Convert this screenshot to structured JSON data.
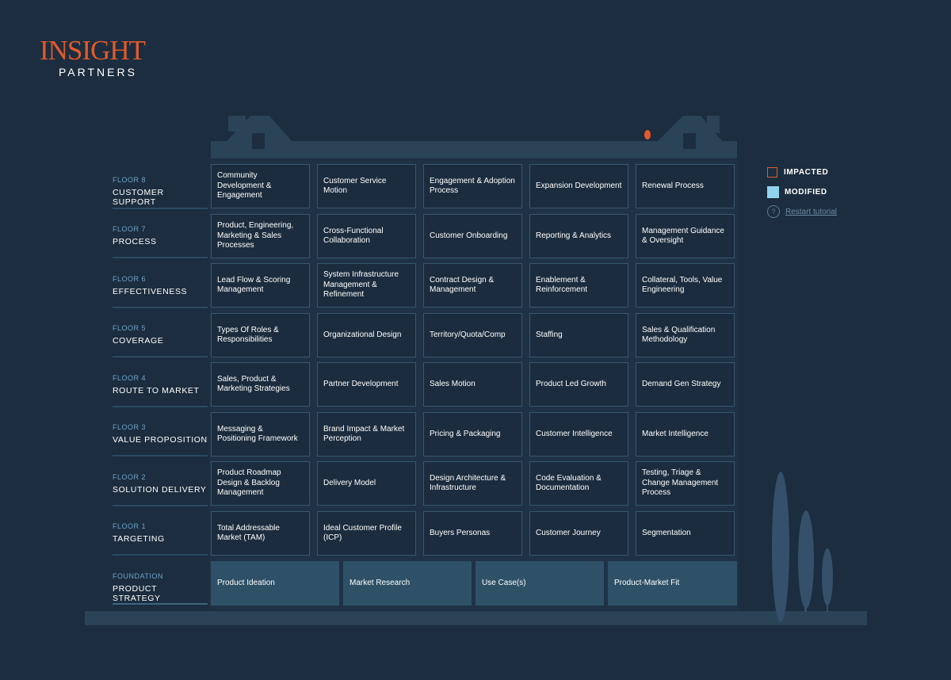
{
  "brand": {
    "name": "INSIGHT",
    "sub": "PARTNERS"
  },
  "legend": {
    "impacted_label": "IMPACTED",
    "modified_label": "MODIFIED",
    "tutorial_label": "Restart tutorial",
    "impacted_color": "#e25a2b",
    "modified_color": "#8fd3ef"
  },
  "floors": [
    {
      "num": "FLOOR 8",
      "name": "CUSTOMER SUPPORT",
      "items": [
        "Community Development & Engagement",
        "Customer Service Motion",
        "Engagement & Adoption Process",
        "Expansion Development",
        "Renewal Process"
      ]
    },
    {
      "num": "FLOOR 7",
      "name": "PROCESS",
      "items": [
        "Product, Engineering, Marketing & Sales Processes",
        "Cross-Functional Collaboration",
        "Customer Onboarding",
        "Reporting & Analytics",
        "Management Guidance & Oversight"
      ]
    },
    {
      "num": "FLOOR 6",
      "name": "EFFECTIVENESS",
      "items": [
        "Lead Flow & Scoring Management",
        "System Infrastructure Management & Refinement",
        "Contract Design & Management",
        "Enablement & Reinforcement",
        "Collateral, Tools, Value Engineering"
      ]
    },
    {
      "num": "FLOOR 5",
      "name": "COVERAGE",
      "items": [
        "Types Of Roles & Responsibilities",
        "Organizational Design",
        "Territory/Quota/Comp",
        "Staffing",
        "Sales & Qualification Methodology"
      ]
    },
    {
      "num": "FLOOR 4",
      "name": "ROUTE TO MARKET",
      "items": [
        "Sales, Product & Marketing Strategies",
        "Partner Development",
        "Sales Motion",
        "Product Led Growth",
        "Demand Gen Strategy"
      ]
    },
    {
      "num": "FLOOR 3",
      "name": "VALUE PROPOSITION",
      "items": [
        "Messaging & Positioning Framework",
        "Brand Impact & Market Perception",
        "Pricing & Packaging",
        "Customer Intelligence",
        "Market Intelligence"
      ]
    },
    {
      "num": "FLOOR 2",
      "name": "SOLUTION DELIVERY",
      "items": [
        "Product Roadmap Design & Backlog Management",
        "Delivery Model",
        "Design Architecture & Infrastructure",
        "Code Evaluation & Documentation",
        "Testing, Triage & Change Management Process"
      ]
    },
    {
      "num": "FLOOR 1",
      "name": "TARGETING",
      "items": [
        "Total Addressable Market (TAM)",
        "Ideal Customer Profile (ICP)",
        "Buyers Personas",
        "Customer Journey",
        "Segmentation"
      ]
    }
  ],
  "foundation": {
    "num": "FOUNDATION",
    "name": "PRODUCT STRATEGY",
    "items": [
      "Product Ideation",
      "Market Research",
      "Use Case(s)",
      "Product-Market Fit"
    ]
  }
}
